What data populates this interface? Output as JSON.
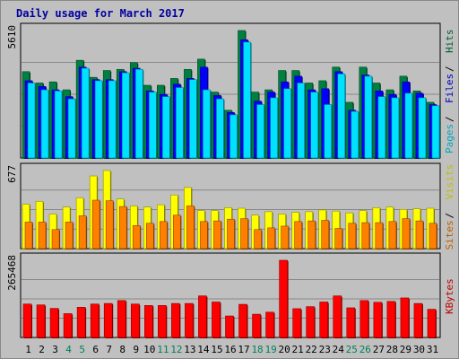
{
  "chart_data": [
    {
      "type": "bar",
      "title": "Daily usage for March 2017",
      "ymax_label": "5610",
      "categories": [
        "1",
        "2",
        "3",
        "4",
        "5",
        "6",
        "7",
        "8",
        "9",
        "10",
        "11",
        "12",
        "13",
        "14",
        "15",
        "16",
        "17",
        "18",
        "19",
        "20",
        "21",
        "22",
        "23",
        "24",
        "25",
        "26",
        "27",
        "28",
        "29",
        "30",
        "31"
      ],
      "weekend_days": [
        "4",
        "5",
        "11",
        "12",
        "18",
        "19",
        "25",
        "26"
      ],
      "series": [
        {
          "name": "Hits",
          "color": "#008040",
          "values": [
            3800,
            3300,
            3350,
            3000,
            4300,
            3550,
            3850,
            3900,
            4200,
            3200,
            3200,
            3500,
            3900,
            4350,
            2900,
            2100,
            5610,
            2900,
            3000,
            3850,
            3850,
            3300,
            3400,
            4000,
            2450,
            4000,
            3300,
            3000,
            3600,
            2950,
            2450
          ]
        },
        {
          "name": "Files",
          "color": "#0000ff",
          "values": [
            3400,
            3150,
            3000,
            2700,
            4000,
            3450,
            3450,
            3800,
            3950,
            2950,
            2800,
            3250,
            3500,
            4000,
            2750,
            2000,
            5200,
            2500,
            2900,
            3350,
            3600,
            3000,
            3050,
            3800,
            2100,
            3650,
            2950,
            2800,
            3350,
            2850,
            2350
          ]
        },
        {
          "name": "Pages",
          "color": "#00e0ff",
          "values": [
            3300,
            3000,
            2950,
            2600,
            3950,
            3400,
            3400,
            3750,
            3900,
            2900,
            2700,
            3100,
            3450,
            3000,
            2600,
            1900,
            5100,
            2350,
            2650,
            3050,
            3300,
            2900,
            2350,
            3700,
            2050,
            3600,
            2700,
            2650,
            2850,
            2650,
            2300
          ]
        }
      ]
    },
    {
      "type": "bar",
      "ymax_label": "677",
      "categories": [
        "1",
        "2",
        "3",
        "4",
        "5",
        "6",
        "7",
        "8",
        "9",
        "10",
        "11",
        "12",
        "13",
        "14",
        "15",
        "16",
        "17",
        "18",
        "19",
        "20",
        "21",
        "22",
        "23",
        "24",
        "25",
        "26",
        "27",
        "28",
        "29",
        "30",
        "31"
      ],
      "series": [
        {
          "name": "Visits",
          "color": "#ffff00",
          "values": [
            385,
            410,
            300,
            360,
            440,
            630,
            677,
            430,
            370,
            360,
            380,
            465,
            530,
            330,
            330,
            355,
            350,
            290,
            320,
            300,
            315,
            320,
            335,
            325,
            310,
            330,
            355,
            360,
            340,
            345,
            350
          ]
        },
        {
          "name": "Sites",
          "color": "#ff8000",
          "values": [
            230,
            230,
            165,
            230,
            285,
            420,
            415,
            365,
            200,
            220,
            235,
            290,
            370,
            235,
            240,
            255,
            260,
            165,
            180,
            195,
            235,
            240,
            245,
            175,
            220,
            225,
            225,
            235,
            260,
            240,
            220
          ]
        }
      ]
    },
    {
      "type": "bar",
      "ymax_label": "265468",
      "categories": [
        "1",
        "2",
        "3",
        "4",
        "5",
        "6",
        "7",
        "8",
        "9",
        "10",
        "11",
        "12",
        "13",
        "14",
        "15",
        "16",
        "17",
        "18",
        "19",
        "20",
        "21",
        "22",
        "23",
        "24",
        "25",
        "26",
        "27",
        "28",
        "29",
        "30",
        "31"
      ],
      "series": [
        {
          "name": "KBytes",
          "color": "#ff0000",
          "values": [
            115000,
            112000,
            100000,
            82000,
            104000,
            115000,
            117000,
            127000,
            115000,
            110000,
            110000,
            117000,
            117000,
            143000,
            122000,
            74000,
            114000,
            80000,
            87000,
            265468,
            99000,
            106000,
            122000,
            143000,
            102000,
            127000,
            121000,
            124000,
            136000,
            117000,
            97000
          ]
        }
      ]
    }
  ]
}
